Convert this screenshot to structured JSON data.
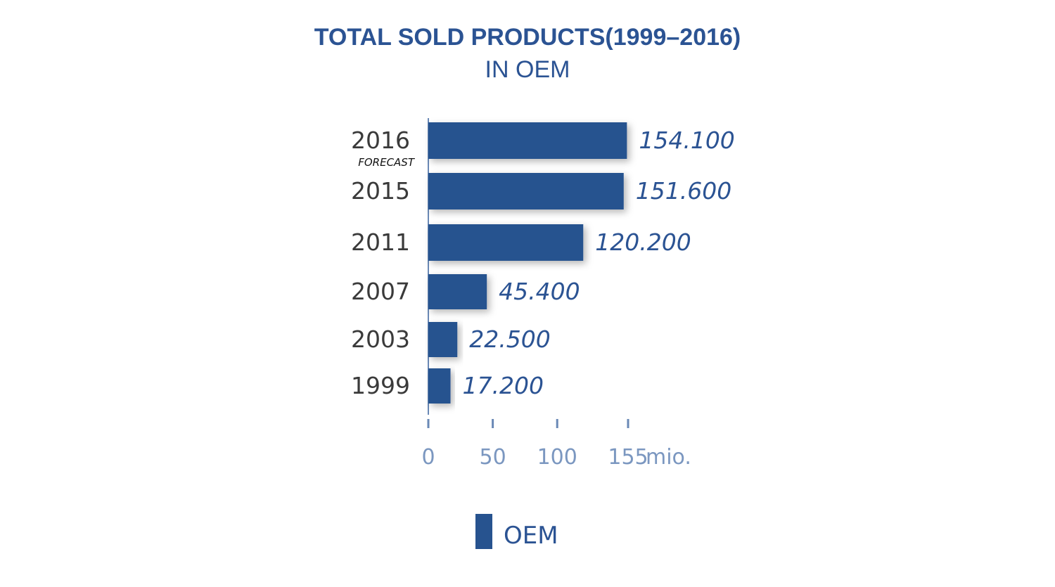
{
  "colors": {
    "bar": "#27538f",
    "title": "#2b5393",
    "axis": "#6a89b6",
    "tick_text": "#7b97c0",
    "category_text": "#3a3a3a"
  },
  "chart_data": {
    "type": "bar",
    "orientation": "horizontal",
    "title": "TOTAL SOLD PRODUCTS(1999–2016)",
    "subtitle": "IN OEM",
    "categories": [
      "2016",
      "2015",
      "2011",
      "2007",
      "2003",
      "1999"
    ],
    "category_notes": [
      "FORECAST",
      "",
      "",
      "",
      "",
      ""
    ],
    "series": [
      {
        "name": "OEM",
        "values": [
          154.1,
          151.6,
          120.2,
          45.4,
          22.5,
          17.2
        ]
      }
    ],
    "value_labels": [
      "154.100",
      "151.600",
      "120.200",
      "45.400",
      "22.500",
      "17.200"
    ],
    "x_ticks": [
      0,
      50,
      100,
      155
    ],
    "x_tick_labels": [
      "0",
      "50",
      "100",
      "155"
    ],
    "x_unit": "mio.",
    "xlim": [
      0,
      155
    ],
    "grid": false,
    "legend": {
      "placement": "bottom-center",
      "entries": [
        "OEM"
      ]
    }
  }
}
